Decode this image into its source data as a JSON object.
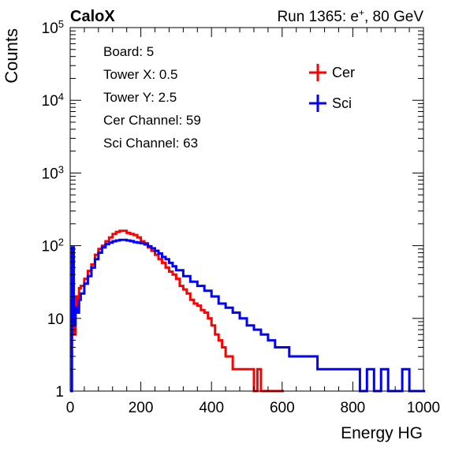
{
  "header": {
    "experiment": "CaloX",
    "run_prefix": "Run 1365: e",
    "run_sup": "+",
    "run_suffix": ", 80 GeV"
  },
  "info_box": {
    "lines": [
      "Board: 5",
      "Tower X: 0.5",
      "Tower Y: 2.5",
      "Cer Channel: 59",
      "Sci Channel: 63"
    ]
  },
  "chart_data": {
    "type": "line",
    "xlabel": "Energy HG",
    "ylabel": "Counts",
    "xlim": [
      0,
      1000
    ],
    "ylim": [
      1,
      100000
    ],
    "yscale": "log",
    "grid": false,
    "legend_position": "top-right",
    "x_ticks": [
      "0",
      "200",
      "400",
      "600",
      "800",
      "1000"
    ],
    "y_ticks": [
      {
        "value": 1,
        "base": "1",
        "exp": ""
      },
      {
        "value": 10,
        "base": "10",
        "exp": ""
      },
      {
        "value": 100,
        "base": "10",
        "exp": "2"
      },
      {
        "value": 1000,
        "base": "10",
        "exp": "3"
      },
      {
        "value": 10000,
        "base": "10",
        "exp": "4"
      },
      {
        "value": 100000,
        "base": "10",
        "exp": "5"
      }
    ],
    "series": [
      {
        "name": "Cer",
        "color": "#ff0000",
        "x": [
          0,
          5,
          10,
          15,
          20,
          25,
          30,
          40,
          50,
          60,
          70,
          80,
          90,
          100,
          110,
          120,
          130,
          140,
          150,
          160,
          170,
          180,
          190,
          200,
          210,
          220,
          230,
          240,
          250,
          260,
          270,
          280,
          290,
          300,
          310,
          320,
          330,
          340,
          350,
          360,
          370,
          380,
          390,
          400,
          410,
          420,
          430,
          440,
          450,
          460,
          470,
          480,
          490,
          500,
          510,
          520,
          530,
          540,
          550,
          560,
          570,
          580,
          590,
          600
        ],
        "y": [
          3,
          18,
          6,
          20,
          14,
          26,
          28,
          35,
          45,
          55,
          75,
          90,
          100,
          115,
          130,
          145,
          155,
          160,
          160,
          150,
          145,
          140,
          130,
          115,
          108,
          95,
          85,
          75,
          65,
          58,
          50,
          44,
          40,
          35,
          28,
          25,
          22,
          18,
          16,
          15,
          13,
          12,
          10,
          8,
          6,
          5,
          4,
          3,
          3,
          2,
          2,
          2,
          2,
          2,
          2,
          1,
          2,
          1,
          1,
          1,
          1,
          1,
          1,
          1
        ]
      },
      {
        "name": "Sci",
        "color": "#0000ff",
        "x": [
          0,
          5,
          10,
          15,
          20,
          25,
          30,
          40,
          50,
          60,
          70,
          80,
          90,
          100,
          110,
          120,
          130,
          140,
          150,
          160,
          170,
          180,
          190,
          200,
          210,
          220,
          230,
          240,
          250,
          260,
          270,
          280,
          290,
          300,
          320,
          340,
          360,
          380,
          400,
          420,
          440,
          460,
          480,
          500,
          520,
          540,
          560,
          580,
          600,
          620,
          640,
          660,
          680,
          700,
          720,
          740,
          760,
          780,
          800,
          820,
          840,
          860,
          880,
          900,
          920,
          940,
          960,
          980,
          1000
        ],
        "y": [
          1,
          95,
          8,
          14,
          12,
          18,
          22,
          30,
          38,
          50,
          65,
          80,
          95,
          105,
          110,
          115,
          118,
          120,
          120,
          118,
          116,
          112,
          110,
          108,
          104,
          98,
          92,
          85,
          78,
          70,
          65,
          58,
          52,
          46,
          38,
          32,
          28,
          24,
          20,
          16,
          14,
          12,
          10,
          8,
          7,
          6,
          5,
          4,
          4,
          3,
          3,
          3,
          3,
          2,
          2,
          2,
          2,
          2,
          2,
          1,
          2,
          1,
          2,
          1,
          1,
          2,
          1,
          1,
          1
        ]
      }
    ]
  }
}
